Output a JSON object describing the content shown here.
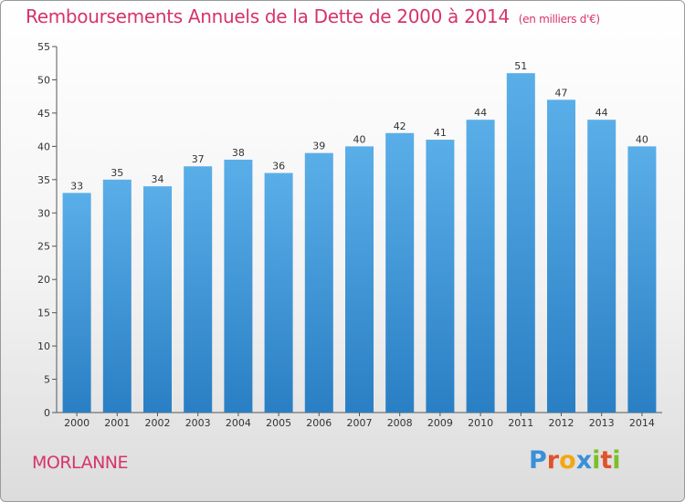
{
  "chart_data": {
    "type": "bar",
    "title": "Remboursements Annuels de la Dette de 2000 à 2014",
    "subtitle": "(en milliers d'€)",
    "categories": [
      "2000",
      "2001",
      "2002",
      "2003",
      "2004",
      "2005",
      "2006",
      "2007",
      "2008",
      "2009",
      "2010",
      "2011",
      "2012",
      "2013",
      "2014"
    ],
    "values": [
      33,
      35,
      34,
      37,
      38,
      36,
      39,
      40,
      42,
      41,
      44,
      51,
      47,
      44,
      40
    ],
    "ylim": [
      0,
      55
    ],
    "yticks": [
      0,
      5,
      10,
      15,
      20,
      25,
      30,
      35,
      40,
      45,
      50,
      55
    ],
    "xlabel": "",
    "ylabel": "",
    "grid": false,
    "bar_color_top": "#5aaee8",
    "bar_color_bottom": "#2a7fc4"
  },
  "footer": {
    "town": "MORLANNE",
    "logo_letters": [
      "P",
      "r",
      "o",
      "x",
      "i",
      "t",
      "i"
    ],
    "logo_colors": [
      "#3a8fd9",
      "#e0522c",
      "#f2a712",
      "#3a8fd9",
      "#7bbf2a",
      "#e0522c",
      "#7bbf2a"
    ]
  },
  "colors": {
    "accent": "#d6336c"
  }
}
